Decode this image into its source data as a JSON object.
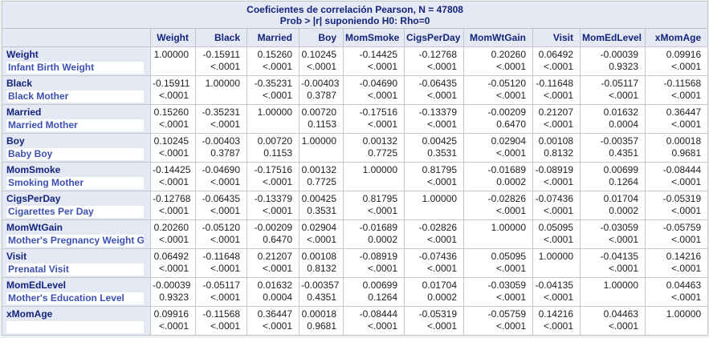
{
  "title": {
    "line1": "Coeficientes de correlación Pearson, N = 47808",
    "line2": "Prob > |r| suponiendo H0: Rho=0"
  },
  "colors": {
    "header_background": "#e4e9f3",
    "header_text": "#13247d",
    "row_label_text": "#3c50b1",
    "data_text": "#202124",
    "grid_border": "#c3c7cb"
  },
  "table": {
    "columns": [
      "Weight",
      "Black",
      "Married",
      "Boy",
      "MomSmoke",
      "CigsPerDay",
      "MomWtGain",
      "Visit",
      "MomEdLevel",
      "xMomAge"
    ],
    "rows": [
      {
        "name": "Weight",
        "label": "Infant Birth Weight",
        "cells": [
          [
            "1.00000",
            ""
          ],
          [
            "-0.15911",
            "<.0001"
          ],
          [
            "0.15260",
            "<.0001"
          ],
          [
            "0.10245",
            "<.0001"
          ],
          [
            "-0.14425",
            "<.0001"
          ],
          [
            "-0.12768",
            "<.0001"
          ],
          [
            "0.20260",
            "<.0001"
          ],
          [
            "0.06492",
            "<.0001"
          ],
          [
            "-0.00039",
            "0.9323"
          ],
          [
            "0.09916",
            "<.0001"
          ]
        ]
      },
      {
        "name": "Black",
        "label": "Black Mother",
        "cells": [
          [
            "-0.15911",
            "<.0001"
          ],
          [
            "1.00000",
            ""
          ],
          [
            "-0.35231",
            "<.0001"
          ],
          [
            "-0.00403",
            "0.3787"
          ],
          [
            "-0.04690",
            "<.0001"
          ],
          [
            "-0.06435",
            "<.0001"
          ],
          [
            "-0.05120",
            "<.0001"
          ],
          [
            "-0.11648",
            "<.0001"
          ],
          [
            "-0.05117",
            "<.0001"
          ],
          [
            "-0.11568",
            "<.0001"
          ]
        ]
      },
      {
        "name": "Married",
        "label": "Married Mother",
        "cells": [
          [
            "0.15260",
            "<.0001"
          ],
          [
            "-0.35231",
            "<.0001"
          ],
          [
            "1.00000",
            ""
          ],
          [
            "0.00720",
            "0.1153"
          ],
          [
            "-0.17516",
            "<.0001"
          ],
          [
            "-0.13379",
            "<.0001"
          ],
          [
            "-0.00209",
            "0.6470"
          ],
          [
            "0.21207",
            "<.0001"
          ],
          [
            "0.01632",
            "0.0004"
          ],
          [
            "0.36447",
            "<.0001"
          ]
        ]
      },
      {
        "name": "Boy",
        "label": "Baby Boy",
        "cells": [
          [
            "0.10245",
            "<.0001"
          ],
          [
            "-0.00403",
            "0.3787"
          ],
          [
            "0.00720",
            "0.1153"
          ],
          [
            "1.00000",
            ""
          ],
          [
            "0.00132",
            "0.7725"
          ],
          [
            "0.00425",
            "0.3531"
          ],
          [
            "0.02904",
            "<.0001"
          ],
          [
            "0.00108",
            "0.8132"
          ],
          [
            "-0.00357",
            "0.4351"
          ],
          [
            "0.00018",
            "0.9681"
          ]
        ]
      },
      {
        "name": "MomSmoke",
        "label": "Smoking Mother",
        "cells": [
          [
            "-0.14425",
            "<.0001"
          ],
          [
            "-0.04690",
            "<.0001"
          ],
          [
            "-0.17516",
            "<.0001"
          ],
          [
            "0.00132",
            "0.7725"
          ],
          [
            "1.00000",
            ""
          ],
          [
            "0.81795",
            "<.0001"
          ],
          [
            "-0.01689",
            "0.0002"
          ],
          [
            "-0.08919",
            "<.0001"
          ],
          [
            "0.00699",
            "0.1264"
          ],
          [
            "-0.08444",
            "<.0001"
          ]
        ]
      },
      {
        "name": "CigsPerDay",
        "label": "Cigarettes Per Day",
        "cells": [
          [
            "-0.12768",
            "<.0001"
          ],
          [
            "-0.06435",
            "<.0001"
          ],
          [
            "-0.13379",
            "<.0001"
          ],
          [
            "0.00425",
            "0.3531"
          ],
          [
            "0.81795",
            "<.0001"
          ],
          [
            "1.00000",
            ""
          ],
          [
            "-0.02826",
            "<.0001"
          ],
          [
            "-0.07436",
            "<.0001"
          ],
          [
            "0.01704",
            "0.0002"
          ],
          [
            "-0.05319",
            "<.0001"
          ]
        ]
      },
      {
        "name": "MomWtGain",
        "label": "Mother's Pregnancy Weight Gain",
        "cells": [
          [
            "0.20260",
            "<.0001"
          ],
          [
            "-0.05120",
            "<.0001"
          ],
          [
            "-0.00209",
            "0.6470"
          ],
          [
            "0.02904",
            "<.0001"
          ],
          [
            "-0.01689",
            "0.0002"
          ],
          [
            "-0.02826",
            "<.0001"
          ],
          [
            "1.00000",
            ""
          ],
          [
            "0.05095",
            "<.0001"
          ],
          [
            "-0.03059",
            "<.0001"
          ],
          [
            "-0.05759",
            "<.0001"
          ]
        ]
      },
      {
        "name": "Visit",
        "label": "Prenatal Visit",
        "cells": [
          [
            "0.06492",
            "<.0001"
          ],
          [
            "-0.11648",
            "<.0001"
          ],
          [
            "0.21207",
            "<.0001"
          ],
          [
            "0.00108",
            "0.8132"
          ],
          [
            "-0.08919",
            "<.0001"
          ],
          [
            "-0.07436",
            "<.0001"
          ],
          [
            "0.05095",
            "<.0001"
          ],
          [
            "1.00000",
            ""
          ],
          [
            "-0.04135",
            "<.0001"
          ],
          [
            "0.14216",
            "<.0001"
          ]
        ]
      },
      {
        "name": "MomEdLevel",
        "label": "Mother's Education Level",
        "cells": [
          [
            "-0.00039",
            "0.9323"
          ],
          [
            "-0.05117",
            "<.0001"
          ],
          [
            "0.01632",
            "0.0004"
          ],
          [
            "-0.00357",
            "0.4351"
          ],
          [
            "0.00699",
            "0.1264"
          ],
          [
            "0.01704",
            "0.0002"
          ],
          [
            "-0.03059",
            "<.0001"
          ],
          [
            "-0.04135",
            "<.0001"
          ],
          [
            "1.00000",
            ""
          ],
          [
            "0.04463",
            "<.0001"
          ]
        ]
      },
      {
        "name": "xMomAge",
        "label": "",
        "cells": [
          [
            "0.09916",
            "<.0001"
          ],
          [
            "-0.11568",
            "<.0001"
          ],
          [
            "0.36447",
            "<.0001"
          ],
          [
            "0.00018",
            "0.9681"
          ],
          [
            "-0.08444",
            "<.0001"
          ],
          [
            "-0.05319",
            "<.0001"
          ],
          [
            "-0.05759",
            "<.0001"
          ],
          [
            "0.14216",
            "<.0001"
          ],
          [
            "0.04463",
            "<.0001"
          ],
          [
            "1.00000",
            ""
          ]
        ]
      }
    ]
  }
}
